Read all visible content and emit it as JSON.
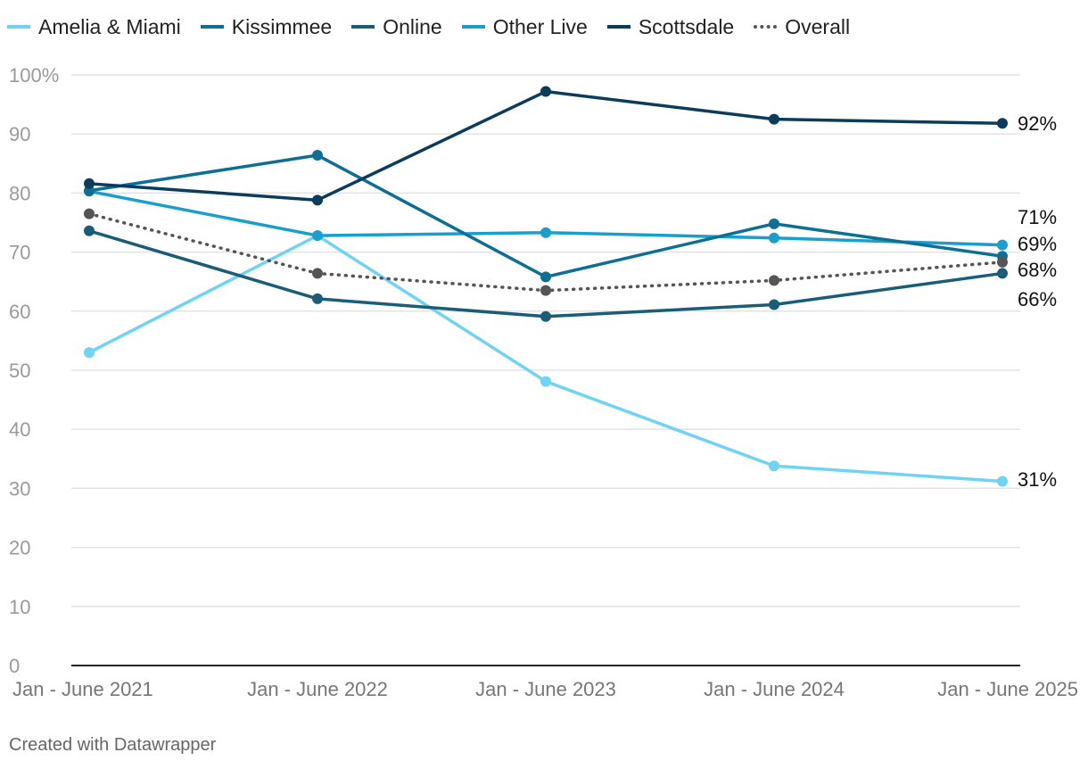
{
  "legend": [
    {
      "name": "Amelia & Miami",
      "color": "#6fd3f5",
      "style": "solid"
    },
    {
      "name": "Kissimmee",
      "color": "#0e6f95",
      "style": "solid"
    },
    {
      "name": "Online",
      "color": "#195d78",
      "style": "solid"
    },
    {
      "name": "Other Live",
      "color": "#199fcd",
      "style": "solid"
    },
    {
      "name": "Scottsdale",
      "color": "#0c3c5c",
      "style": "solid"
    },
    {
      "name": "Overall",
      "color": "#555555",
      "style": "dotted"
    }
  ],
  "footer": "Created with Datawrapper",
  "chart_data": {
    "type": "line",
    "categories": [
      "Jan - June 2021",
      "Jan - June 2022",
      "Jan - June 2023",
      "Jan - June 2024",
      "Jan - June 2025"
    ],
    "ylim": [
      0,
      100
    ],
    "yticks": [
      0,
      10,
      20,
      30,
      40,
      50,
      60,
      70,
      80,
      90,
      100
    ],
    "ytick_labels": [
      "0",
      "10",
      "20",
      "30",
      "40",
      "50",
      "60",
      "70",
      "80",
      "90",
      "100%"
    ],
    "grid": true,
    "legend_position": "top-left",
    "series": [
      {
        "name": "Amelia & Miami",
        "color": "#6fd3f5",
        "dash": false,
        "values": [
          53,
          72.8,
          48.1,
          33.8,
          31.2
        ],
        "end_label": "31%"
      },
      {
        "name": "Online",
        "color": "#195d78",
        "dash": false,
        "values": [
          73.6,
          62.1,
          59.1,
          61.1,
          66.4
        ],
        "end_label": "66%"
      },
      {
        "name": "Other Live",
        "color": "#199fcd",
        "dash": false,
        "values": [
          80.3,
          72.8,
          73.3,
          72.4,
          71.2
        ],
        "end_label": "71%"
      },
      {
        "name": "Kissimmee",
        "color": "#0e6f95",
        "dash": false,
        "values": [
          80.4,
          86.4,
          65.8,
          74.8,
          69.3
        ],
        "end_label": "69%"
      },
      {
        "name": "Overall",
        "color": "#555555",
        "dash": true,
        "values": [
          76.5,
          66.4,
          63.5,
          65.2,
          68.3
        ],
        "end_label": "68%"
      },
      {
        "name": "Scottsdale",
        "color": "#0c3c5c",
        "dash": false,
        "values": [
          81.6,
          78.8,
          97.2,
          92.5,
          91.8
        ],
        "end_label": "92%"
      }
    ]
  }
}
